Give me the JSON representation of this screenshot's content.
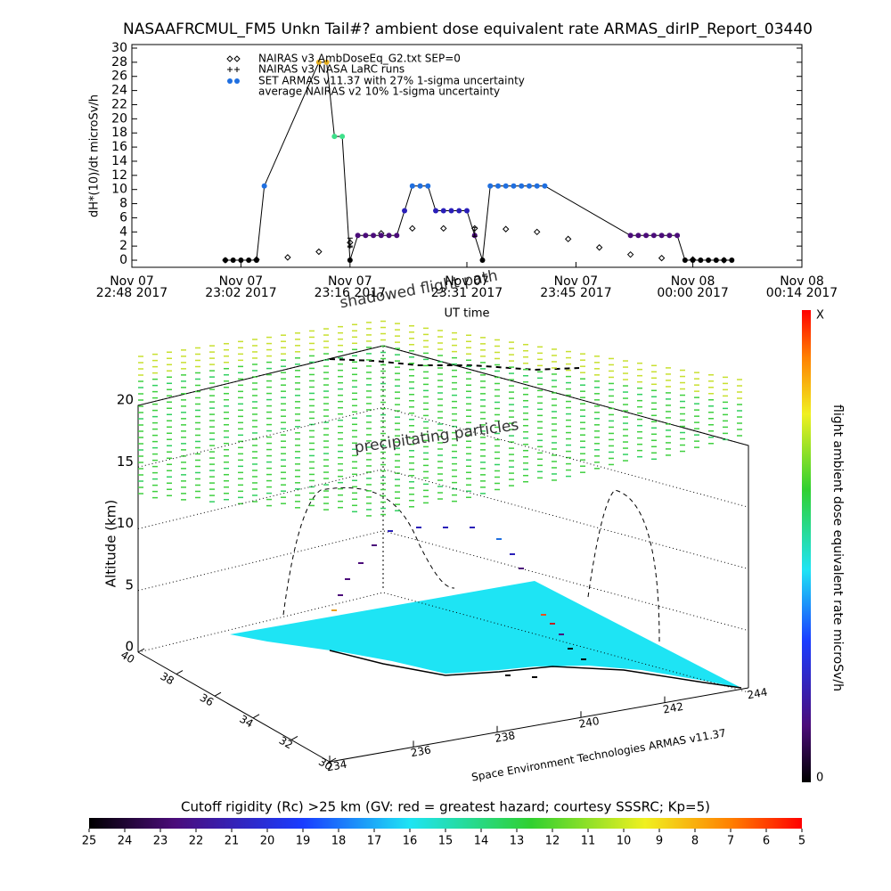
{
  "chart_data": [
    {
      "type": "line",
      "title": "NASAAFRCMUL_FM5 Unkn Tail#? ambient dose equivalent rate ARMAS_dirIP_Report_03440",
      "ylabel": "dH*(10)/dt microSv/h",
      "xlabel": "UT time",
      "xlim": [
        "2017-11-07 22:48",
        "2017-11-08 00:14"
      ],
      "xticks": [
        {
          "value": "2017-11-07 22:48",
          "label": [
            "Nov 07",
            "22:48 2017"
          ]
        },
        {
          "value": "2017-11-07 23:02",
          "label": [
            "Nov 07",
            "23:02 2017"
          ]
        },
        {
          "value": "2017-11-07 23:16",
          "label": [
            "Nov 07",
            "23:16 2017"
          ]
        },
        {
          "value": "2017-11-07 23:31",
          "label": [
            "Nov 07",
            "23:31 2017"
          ]
        },
        {
          "value": "2017-11-07 23:45",
          "label": [
            "Nov 07",
            "23:45 2017"
          ]
        },
        {
          "value": "2017-11-08 00:00",
          "label": [
            "Nov 08",
            "00:00 2017"
          ]
        },
        {
          "value": "2017-11-08 00:14",
          "label": [
            "Nov 08",
            "00:14 2017"
          ]
        }
      ],
      "ylim": [
        -0.5,
        30
      ],
      "yticks": [
        0,
        2,
        4,
        6,
        8,
        10,
        12,
        14,
        16,
        18,
        20,
        22,
        24,
        26,
        28,
        30
      ],
      "series": [
        {
          "name": "NAIRAS v3 AmbDoseEq_G2.txt SEP=0",
          "marker": "diamond",
          "color": "#000000",
          "x": [
            "2017-11-07 23:00",
            "2017-11-07 23:04",
            "2017-11-07 23:08",
            "2017-11-07 23:12",
            "2017-11-07 23:16",
            "2017-11-07 23:20",
            "2017-11-07 23:24",
            "2017-11-07 23:28",
            "2017-11-07 23:32",
            "2017-11-07 23:36",
            "2017-11-07 23:40",
            "2017-11-07 23:44",
            "2017-11-07 23:48",
            "2017-11-07 23:52",
            "2017-11-07 23:56",
            "2017-11-08 00:00",
            "2017-11-08 00:04"
          ],
          "values": [
            0,
            0.1,
            0.4,
            1.2,
            2.5,
            3.8,
            4.5,
            4.5,
            4.5,
            4.4,
            4,
            3,
            1.8,
            0.8,
            0.3,
            0.1,
            0
          ]
        },
        {
          "name": "NAIRAS v3 NASA LaRC runs",
          "marker": "plus",
          "color": "#000000",
          "x": [
            "2017-11-07 23:16"
          ],
          "values": [
            2
          ]
        },
        {
          "name": "SET ARMAS v11.37 with 27% 1-sigma uncertainty",
          "marker": "dot",
          "color": "#1f6fe0",
          "x": [
            "2017-11-07 23:00",
            "2017-11-07 23:01",
            "2017-11-07 23:02",
            "2017-11-07 23:03",
            "2017-11-07 23:04",
            "2017-11-07 23:05",
            "2017-11-07 23:12",
            "2017-11-07 23:13",
            "2017-11-07 23:14",
            "2017-11-07 23:15",
            "2017-11-07 23:16",
            "2017-11-07 23:17",
            "2017-11-07 23:18",
            "2017-11-07 23:19",
            "2017-11-07 23:20",
            "2017-11-07 23:21",
            "2017-11-07 23:22",
            "2017-11-07 23:23",
            "2017-11-07 23:24",
            "2017-11-07 23:25",
            "2017-11-07 23:26",
            "2017-11-07 23:27",
            "2017-11-07 23:28",
            "2017-11-07 23:29",
            "2017-11-07 23:30",
            "2017-11-07 23:31",
            "2017-11-07 23:32",
            "2017-11-07 23:33",
            "2017-11-07 23:34",
            "2017-11-07 23:35",
            "2017-11-07 23:36",
            "2017-11-07 23:37",
            "2017-11-07 23:38",
            "2017-11-07 23:39",
            "2017-11-07 23:40",
            "2017-11-07 23:41",
            "2017-11-07 23:52",
            "2017-11-07 23:53",
            "2017-11-07 23:54",
            "2017-11-07 23:55",
            "2017-11-07 23:56",
            "2017-11-07 23:57",
            "2017-11-07 23:58",
            "2017-11-07 23:59",
            "2017-11-08 00:00",
            "2017-11-08 00:01",
            "2017-11-08 00:02",
            "2017-11-08 00:03",
            "2017-11-08 00:04",
            "2017-11-08 00:05"
          ],
          "values": [
            0,
            0,
            0,
            0,
            0,
            10.5,
            28,
            28,
            17.5,
            17.5,
            0,
            3.5,
            3.5,
            3.5,
            3.5,
            3.5,
            3.5,
            7,
            10.5,
            10.5,
            10.5,
            7,
            7,
            7,
            7,
            7,
            3.5,
            0,
            10.5,
            10.5,
            10.5,
            10.5,
            10.5,
            10.5,
            10.5,
            10.5,
            3.5,
            3.5,
            3.5,
            3.5,
            3.5,
            3.5,
            3.5,
            0,
            0,
            0,
            0,
            0,
            0,
            0
          ],
          "colors": [
            "#000000",
            "#000000",
            "#000000",
            "#000000",
            "#000000",
            "#1f6fe0",
            "#e8b020",
            "#e8b020",
            "#3ee08a",
            "#3ee08a",
            "#000000",
            "#4b0c7a",
            "#4b0c7a",
            "#4b0c7a",
            "#4b0c7a",
            "#4b0c7a",
            "#4b0c7a",
            "#2a1fb8",
            "#1f6fe0",
            "#1f6fe0",
            "#1f6fe0",
            "#2a1fb8",
            "#2a1fb8",
            "#2a1fb8",
            "#2a1fb8",
            "#2a1fb8",
            "#4b0c7a",
            "#000000",
            "#1f6fe0",
            "#1f6fe0",
            "#1f6fe0",
            "#1f6fe0",
            "#1f6fe0",
            "#1f6fe0",
            "#1f6fe0",
            "#1f6fe0",
            "#4b0c7a",
            "#4b0c7a",
            "#4b0c7a",
            "#4b0c7a",
            "#4b0c7a",
            "#4b0c7a",
            "#4b0c7a",
            "#000000",
            "#000000",
            "#000000",
            "#000000",
            "#000000",
            "#000000",
            "#000000"
          ]
        },
        {
          "name": "average NAIRAS v2 10% 1-sigma uncertainty",
          "marker": "errbar",
          "color": "#000000",
          "x": [
            "2017-11-07 23:16",
            "2017-11-07 23:32"
          ],
          "values": [
            2.5,
            4
          ]
        }
      ]
    },
    {
      "type": "surface3d",
      "zlabel": "Altitude (km)",
      "zlim": [
        0,
        20
      ],
      "zticks": [
        0,
        5,
        10,
        15,
        20
      ],
      "ylim": [
        30,
        40
      ],
      "yticks": [
        30,
        32,
        34,
        36,
        38,
        40
      ],
      "xlim": [
        234,
        244
      ],
      "xticks": [
        234,
        236,
        238,
        240,
        242,
        244
      ],
      "annotations": [
        "shadowed flight path",
        "precipitating particles"
      ],
      "credit": "Space Environment Technologies ARMAS v11.37",
      "surface_color": "#1ee4f4"
    },
    {
      "type": "colorbar",
      "orientation": "vertical",
      "label": "flight ambient dose equivalent rate microSv/h",
      "end_labels": [
        "0",
        "X"
      ]
    },
    {
      "type": "colorbar",
      "orientation": "horizontal",
      "title": "Cutoff rigidity (Rc) >25 km (GV: red = greatest hazard; courtesy SSSRC; Kp=5)",
      "xlim": [
        25,
        5
      ],
      "xticks": [
        25,
        24,
        23,
        22,
        21,
        20,
        19,
        18,
        17,
        16,
        15,
        14,
        13,
        12,
        11,
        10,
        9,
        8,
        7,
        6,
        5
      ]
    }
  ]
}
